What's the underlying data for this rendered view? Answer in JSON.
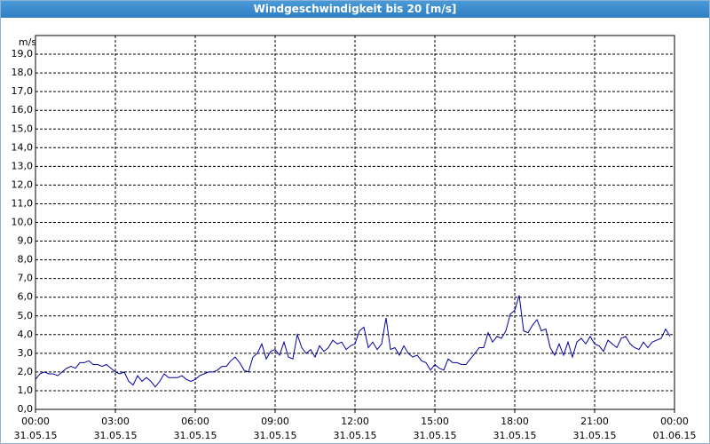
{
  "chart_data": {
    "type": "line",
    "title": "Windgeschwindigkeit bis 20 [m/s]",
    "y_label": "m/s",
    "xlim": [
      0,
      1440
    ],
    "xticks": [
      {
        "value": 0,
        "label": "00:00"
      },
      {
        "value": 180,
        "label": "03:00"
      },
      {
        "value": 360,
        "label": "06:00"
      },
      {
        "value": 540,
        "label": "09:00"
      },
      {
        "value": 720,
        "label": "12:00"
      },
      {
        "value": 900,
        "label": "15:00"
      },
      {
        "value": 1080,
        "label": "18:00"
      },
      {
        "value": 1260,
        "label": "21:00"
      },
      {
        "value": 1440,
        "label": "00:00"
      }
    ],
    "xtick_dates": [
      "31.05.15",
      "31.05.15",
      "31.05.15",
      "31.05.15",
      "31.05.15",
      "31.05.15",
      "31.05.15",
      "31.05.15",
      "01.06.15"
    ],
    "ylim": [
      0,
      20
    ],
    "yticks": [
      {
        "value": 0,
        "label": "0,0"
      },
      {
        "value": 1,
        "label": "1,0"
      },
      {
        "value": 2,
        "label": "2,0"
      },
      {
        "value": 3,
        "label": "3,0"
      },
      {
        "value": 4,
        "label": "4,0"
      },
      {
        "value": 5,
        "label": "5,0"
      },
      {
        "value": 6,
        "label": "6,0"
      },
      {
        "value": 7,
        "label": "7,0"
      },
      {
        "value": 8,
        "label": "8,0"
      },
      {
        "value": 9,
        "label": "9,0"
      },
      {
        "value": 10,
        "label": "10,0"
      },
      {
        "value": 11,
        "label": "11,0"
      },
      {
        "value": 12,
        "label": "12,0"
      },
      {
        "value": 13,
        "label": "13,0"
      },
      {
        "value": 14,
        "label": "14,0"
      },
      {
        "value": 15,
        "label": "15,0"
      },
      {
        "value": 16,
        "label": "16,0"
      },
      {
        "value": 17,
        "label": "17,0"
      },
      {
        "value": 18,
        "label": "18,0"
      },
      {
        "value": 19,
        "label": "19,0"
      }
    ],
    "grid": true,
    "series": [
      {
        "color": "#0000a0",
        "x": [
          0,
          10,
          20,
          30,
          40,
          50,
          60,
          70,
          80,
          90,
          100,
          110,
          120,
          130,
          140,
          150,
          160,
          170,
          180,
          190,
          200,
          210,
          220,
          230,
          240,
          250,
          260,
          270,
          280,
          290,
          300,
          310,
          320,
          330,
          340,
          350,
          360,
          370,
          380,
          390,
          400,
          410,
          420,
          430,
          440,
          450,
          460,
          470,
          480,
          490,
          500,
          510,
          520,
          530,
          540,
          550,
          560,
          570,
          580,
          590,
          600,
          610,
          620,
          630,
          640,
          650,
          660,
          670,
          680,
          690,
          700,
          710,
          720,
          730,
          740,
          750,
          760,
          770,
          780,
          790,
          800,
          810,
          820,
          830,
          840,
          850,
          860,
          870,
          880,
          890,
          900,
          910,
          920,
          930,
          940,
          950,
          960,
          970,
          980,
          990,
          1000,
          1010,
          1020,
          1030,
          1040,
          1050,
          1060,
          1070,
          1080,
          1090,
          1100,
          1110,
          1120,
          1130,
          1140,
          1150,
          1160,
          1170,
          1180,
          1190,
          1200,
          1210,
          1220,
          1230,
          1240,
          1250,
          1260,
          1270,
          1280,
          1290,
          1300,
          1310,
          1320,
          1330,
          1340,
          1350,
          1360,
          1370,
          1380,
          1390,
          1400,
          1410,
          1420,
          1430
        ],
        "values": [
          1.6,
          1.9,
          2.0,
          1.9,
          1.9,
          1.8,
          2.0,
          2.2,
          2.3,
          2.2,
          2.5,
          2.5,
          2.6,
          2.4,
          2.4,
          2.3,
          2.4,
          2.2,
          2.0,
          1.9,
          2.0,
          1.5,
          1.3,
          1.8,
          1.5,
          1.7,
          1.5,
          1.2,
          1.5,
          1.9,
          1.7,
          1.7,
          1.7,
          1.8,
          1.6,
          1.5,
          1.6,
          1.8,
          1.9,
          2.0,
          2.0,
          2.1,
          2.3,
          2.3,
          2.6,
          2.8,
          2.5,
          2.1,
          2.0,
          2.8,
          3.0,
          3.5,
          2.7,
          3.1,
          3.2,
          2.9,
          3.6,
          2.8,
          2.7,
          4.0,
          3.3,
          3.0,
          3.2,
          2.8,
          3.4,
          3.1,
          3.3,
          3.7,
          3.5,
          3.6,
          3.2,
          3.4,
          3.5,
          4.2,
          4.4,
          3.3,
          3.6,
          3.2,
          3.5,
          4.9,
          3.2,
          3.3,
          2.9,
          3.4,
          3.0,
          2.8,
          2.9,
          2.6,
          2.5,
          2.1,
          2.4,
          2.2,
          2.1,
          2.7,
          2.5,
          2.5,
          2.4,
          2.4,
          2.7,
          3.0,
          3.3,
          3.3,
          4.1,
          3.6,
          3.9,
          3.8,
          4.2,
          5.1,
          5.3,
          6.1,
          4.2,
          4.1,
          4.5,
          4.8,
          4.2,
          4.3,
          3.3,
          2.9,
          3.5,
          2.9,
          3.6,
          2.8,
          3.6,
          3.8,
          3.5,
          3.9,
          3.5,
          3.4,
          3.1,
          3.7,
          3.5,
          3.3,
          3.8,
          3.9,
          3.5,
          3.3,
          3.2,
          3.6,
          3.3,
          3.6,
          3.7,
          3.8,
          4.3,
          3.9
        ]
      }
    ]
  }
}
